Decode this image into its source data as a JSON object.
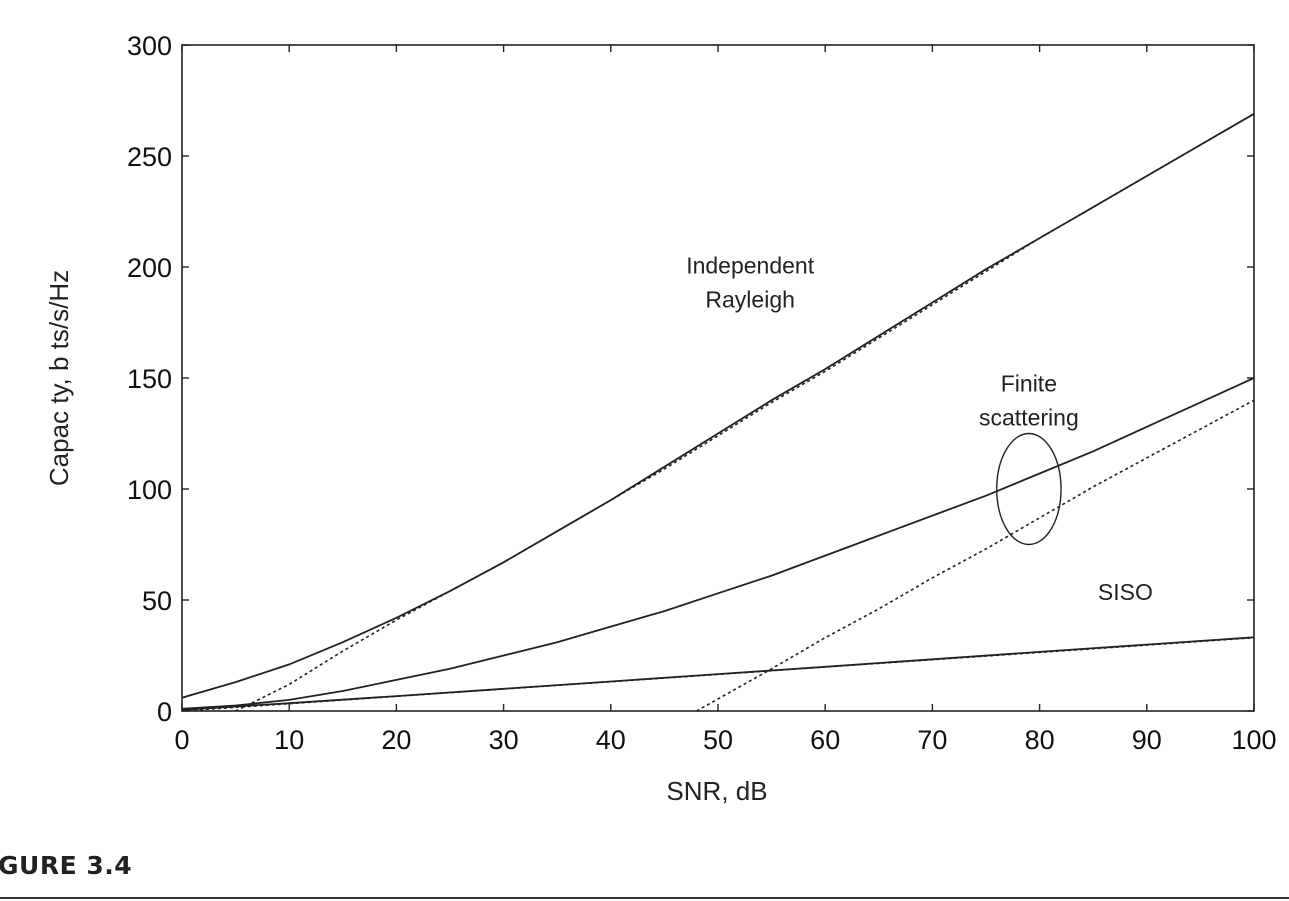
{
  "chart_data": {
    "type": "line",
    "title": "",
    "xlabel": "SNR, dB",
    "ylabel": "Capac ty, b ts/s/Hz",
    "xlim": [
      0,
      100
    ],
    "ylim": [
      0,
      300
    ],
    "xticks": [
      0,
      10,
      20,
      30,
      40,
      50,
      60,
      70,
      80,
      90,
      100
    ],
    "yticks": [
      0,
      50,
      100,
      150,
      200,
      250,
      300
    ],
    "grid": false,
    "legend": "none",
    "series": [
      {
        "style": "solid",
        "x": [
          0,
          5,
          10,
          15,
          20,
          25,
          30,
          35,
          40,
          45,
          50,
          55,
          60,
          65,
          70,
          75,
          80,
          85,
          90,
          95,
          100
        ],
        "y": [
          6,
          13,
          21,
          31,
          42,
          54,
          67,
          81,
          95,
          110,
          125,
          140,
          154,
          169,
          184,
          199,
          213,
          227,
          241,
          255,
          269
        ]
      },
      {
        "style": "dashed",
        "x": [
          5,
          10,
          15,
          20,
          25,
          30,
          35,
          40,
          45,
          50,
          55,
          60,
          65,
          70,
          75,
          80,
          85,
          90,
          95,
          100
        ],
        "y": [
          0,
          12,
          27,
          41,
          54,
          67,
          81,
          95,
          109,
          124,
          139,
          153,
          168,
          183,
          198,
          213,
          227,
          241,
          255,
          269
        ]
      },
      {
        "style": "solid",
        "x": [
          0,
          5,
          10,
          15,
          20,
          25,
          30,
          35,
          40,
          45,
          50,
          55,
          60,
          65,
          70,
          75,
          80,
          85,
          90,
          95,
          100
        ],
        "y": [
          1,
          2.5,
          5,
          9,
          14,
          19,
          25,
          31,
          38,
          45,
          53,
          61,
          70,
          79,
          88,
          97,
          107,
          117,
          128,
          139,
          150
        ]
      },
      {
        "style": "dashed",
        "x": [
          48,
          55,
          60,
          65,
          70,
          75,
          80,
          85,
          90,
          95,
          100
        ],
        "y": [
          0,
          19,
          33,
          46,
          60,
          73,
          87,
          101,
          114,
          127,
          140
        ]
      },
      {
        "style": "solid",
        "x": [
          0,
          10,
          20,
          30,
          40,
          50,
          60,
          70,
          80,
          90,
          100
        ],
        "y": [
          0.5,
          3.5,
          6.7,
          10,
          13.3,
          16.6,
          19.9,
          23.3,
          26.6,
          29.9,
          33.2
        ]
      },
      {
        "style": "dashed",
        "x": [
          0,
          10,
          20,
          30,
          40,
          50,
          60,
          70,
          80,
          90,
          100
        ],
        "y": [
          0,
          3.3,
          6.6,
          9.9,
          13.2,
          16.5,
          19.8,
          23.1,
          26.4,
          29.7,
          33
        ]
      }
    ],
    "annotations": [
      {
        "lines": [
          "Independent",
          "Rayleigh"
        ],
        "x": 53,
        "y": 197
      },
      {
        "lines": [
          "Finite",
          "scattering"
        ],
        "x": 79,
        "y": 144
      },
      {
        "lines": [
          "SISO"
        ],
        "x": 88,
        "y": 50
      }
    ],
    "ellipse": {
      "cx": 79,
      "cy": 100,
      "rx": 3,
      "ry": 25
    }
  },
  "caption": "GURE 3.4"
}
